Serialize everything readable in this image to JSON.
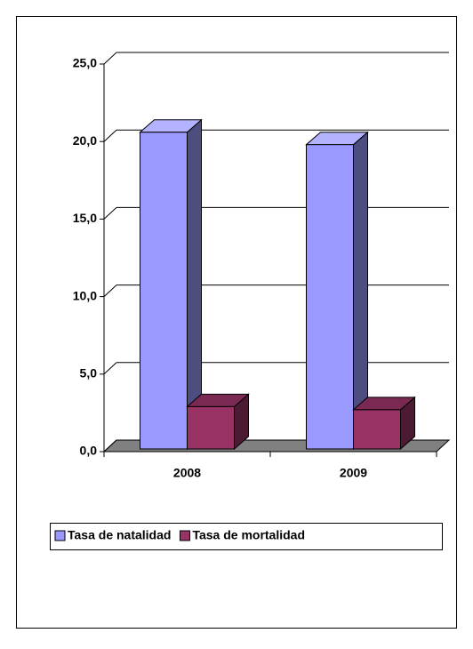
{
  "chart_data": {
    "type": "bar3d",
    "categories": [
      "2008",
      "2009"
    ],
    "series": [
      {
        "name": "Tasa de natalidad",
        "color": "#9999ff",
        "values": [
          20.6,
          19.8
        ]
      },
      {
        "name": "Tasa de mortalidad",
        "color": "#993366",
        "values": [
          2.9,
          2.7
        ]
      }
    ],
    "ylim": [
      0,
      25
    ],
    "yticks": [
      {
        "value": 0,
        "label": "0,0"
      },
      {
        "value": 5,
        "label": "5,0"
      },
      {
        "value": 10,
        "label": "10,0"
      },
      {
        "value": 15,
        "label": "15,0"
      },
      {
        "value": 20,
        "label": "20,0"
      },
      {
        "value": 25,
        "label": "25,0"
      }
    ],
    "grid": true,
    "legend": "bottom"
  }
}
